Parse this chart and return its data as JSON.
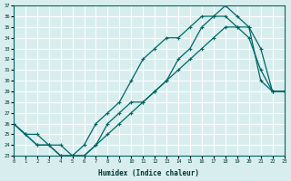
{
  "xlabel": "Humidex (Indice chaleur)",
  "bg_color": "#d8eeee",
  "grid_color": "#ffffff",
  "line_color": "#006666",
  "xlim": [
    0,
    23
  ],
  "ylim": [
    23,
    37
  ],
  "xticks": [
    0,
    1,
    2,
    3,
    4,
    5,
    6,
    7,
    8,
    9,
    10,
    11,
    12,
    13,
    14,
    15,
    16,
    17,
    18,
    19,
    20,
    21,
    22,
    23
  ],
  "yticks": [
    23,
    24,
    25,
    26,
    27,
    28,
    29,
    30,
    31,
    32,
    33,
    34,
    35,
    36,
    37
  ],
  "line1_x": [
    0,
    1,
    2,
    3,
    4,
    5,
    6,
    7,
    8,
    9,
    10,
    11,
    12,
    13,
    14,
    15,
    16,
    17,
    18,
    19,
    20,
    21,
    22,
    23
  ],
  "line1_y": [
    26,
    25,
    24,
    24,
    23,
    23,
    23,
    24,
    25,
    26,
    27,
    28,
    29,
    30,
    32,
    33,
    35,
    36,
    37,
    36,
    35,
    33,
    29,
    29
  ],
  "line2_x": [
    0,
    1,
    2,
    3,
    4,
    5,
    6,
    7,
    8,
    9,
    10,
    11,
    12,
    13,
    14,
    15,
    16,
    17,
    18,
    19,
    20,
    21,
    22,
    23
  ],
  "line2_y": [
    26,
    25,
    25,
    24,
    24,
    23,
    24,
    26,
    27,
    28,
    30,
    32,
    33,
    34,
    34,
    35,
    36,
    36,
    36,
    35,
    34,
    31,
    29,
    29
  ],
  "line3_x": [
    0,
    1,
    2,
    3,
    4,
    5,
    6,
    7,
    8,
    9,
    10,
    11,
    12,
    13,
    14,
    15,
    16,
    17,
    18,
    19,
    20,
    21,
    22,
    23
  ],
  "line3_y": [
    26,
    25,
    24,
    24,
    23,
    23,
    23,
    24,
    26,
    27,
    28,
    28,
    29,
    30,
    31,
    32,
    33,
    34,
    35,
    35,
    35,
    30,
    29,
    29
  ]
}
